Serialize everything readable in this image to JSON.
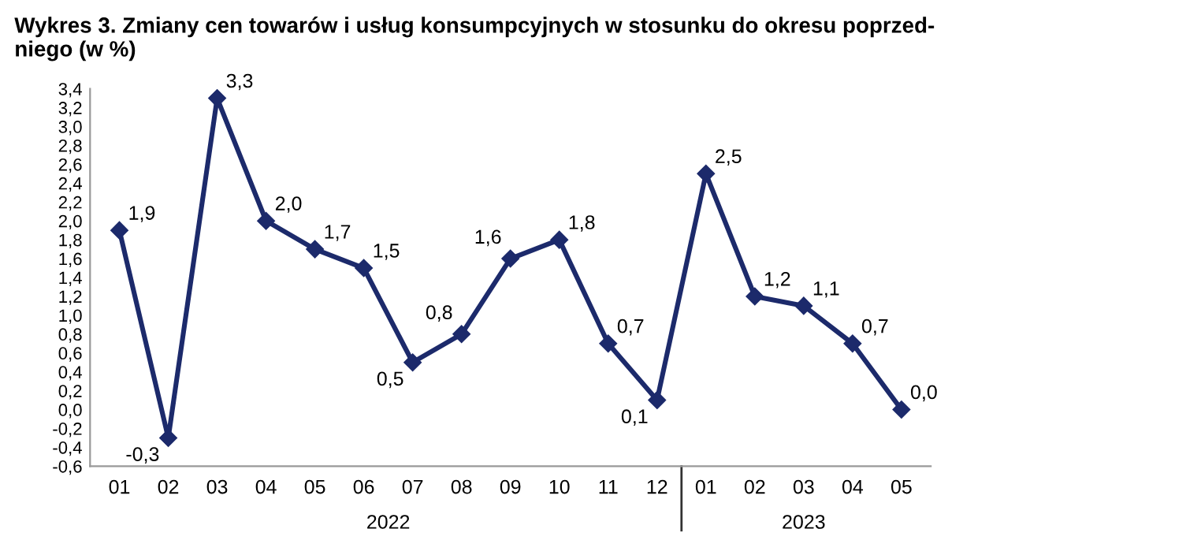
{
  "chart_data": {
    "type": "line",
    "title": "Wykres 3. Zmiany cen towarów i usług konsumpcyjnych w stosunku do okresu poprzed-\nniego (w %)",
    "categories": [
      "01",
      "02",
      "03",
      "04",
      "05",
      "06",
      "07",
      "08",
      "09",
      "10",
      "11",
      "12",
      "01",
      "02",
      "03",
      "04",
      "05"
    ],
    "series": [
      {
        "color": "#1c2a6b",
        "values": [
          1.9,
          -0.3,
          3.3,
          2.0,
          1.7,
          1.5,
          0.5,
          0.8,
          1.6,
          1.8,
          0.7,
          0.1,
          2.5,
          1.2,
          1.1,
          0.7,
          0.0
        ],
        "value_labels": [
          "1,9",
          "-0,3",
          "3,3",
          "2,0",
          "1,7",
          "1,5",
          "0,5",
          "0,8",
          "1,6",
          "1,8",
          "0,7",
          "0,1",
          "2,5",
          "1,2",
          "1,1",
          "0,7",
          "0,0"
        ]
      }
    ],
    "ylim": [
      -0.6,
      3.4
    ],
    "yticks": [
      {
        "value": -0.6,
        "label": "-0,6"
      },
      {
        "value": -0.4,
        "label": "-0,4"
      },
      {
        "value": -0.2,
        "label": "-0,2"
      },
      {
        "value": 0.0,
        "label": "0,0"
      },
      {
        "value": 0.2,
        "label": "0,2"
      },
      {
        "value": 0.4,
        "label": "0,4"
      },
      {
        "value": 0.6,
        "label": "0,6"
      },
      {
        "value": 0.8,
        "label": "0,8"
      },
      {
        "value": 1.0,
        "label": "1,0"
      },
      {
        "value": 1.2,
        "label": "1,2"
      },
      {
        "value": 1.4,
        "label": "1,4"
      },
      {
        "value": 1.6,
        "label": "1,6"
      },
      {
        "value": 1.8,
        "label": "1,8"
      },
      {
        "value": 2.0,
        "label": "2,0"
      },
      {
        "value": 2.2,
        "label": "2,2"
      },
      {
        "value": 2.4,
        "label": "2,4"
      },
      {
        "value": 2.6,
        "label": "2,6"
      },
      {
        "value": 2.8,
        "label": "2,8"
      },
      {
        "value": 3.0,
        "label": "3,0"
      },
      {
        "value": 3.2,
        "label": "3,2"
      },
      {
        "value": 3.4,
        "label": "3,4"
      }
    ],
    "annotations": [
      "2022",
      "2023"
    ],
    "marker": "diamond",
    "line_style": "solid",
    "grid": false,
    "legend": false
  }
}
